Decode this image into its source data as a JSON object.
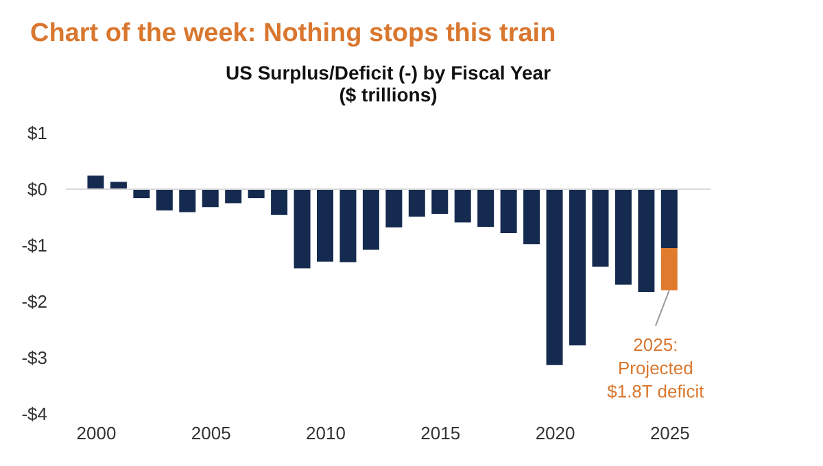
{
  "chart_data": {
    "type": "bar",
    "title": "Chart of the week: Nothing stops this train",
    "subtitle": "US Surplus/Deficit (-) by Fiscal Year\n($ trillions)",
    "x": [
      2000,
      2001,
      2002,
      2003,
      2004,
      2005,
      2006,
      2007,
      2008,
      2009,
      2010,
      2011,
      2012,
      2013,
      2014,
      2015,
      2016,
      2017,
      2018,
      2019,
      2020,
      2021,
      2022,
      2023,
      2024,
      2025
    ],
    "stacked": true,
    "series": [
      {
        "color": "#152a4f",
        "values": [
          0.24,
          0.13,
          -0.16,
          -0.38,
          -0.41,
          -0.32,
          -0.25,
          -0.16,
          -0.46,
          -1.41,
          -1.29,
          -1.3,
          -1.08,
          -0.68,
          -0.49,
          -0.44,
          -0.59,
          -0.67,
          -0.78,
          -0.98,
          -3.13,
          -2.78,
          -1.38,
          -1.7,
          -1.83,
          -1.05
        ]
      },
      {
        "color": "#e07b2e",
        "values": [
          null,
          null,
          null,
          null,
          null,
          null,
          null,
          null,
          null,
          null,
          null,
          null,
          null,
          null,
          null,
          null,
          null,
          null,
          null,
          null,
          null,
          null,
          null,
          null,
          null,
          -0.75
        ]
      }
    ],
    "xlim": [
      1999,
      2026.5
    ],
    "xticks": [
      2000,
      2005,
      2010,
      2015,
      2020,
      2025
    ],
    "ylim": [
      -4,
      1
    ],
    "yticks": [
      {
        "value": 1,
        "label": "$1"
      },
      {
        "value": 0,
        "label": "$0"
      },
      {
        "value": -1,
        "label": "-$1"
      },
      {
        "value": -2,
        "label": "-$2"
      },
      {
        "value": -3,
        "label": "-$3"
      },
      {
        "value": -4,
        "label": "-$4"
      }
    ],
    "ref_lines": [
      {
        "axis": "y",
        "value": 0,
        "color": "#d9d9d9"
      }
    ],
    "annotations": [
      {
        "text": "2025:\nProjected\n$1.8T deficit",
        "x": 2025,
        "y": -1.8
      }
    ],
    "grid": false,
    "legend": false
  }
}
